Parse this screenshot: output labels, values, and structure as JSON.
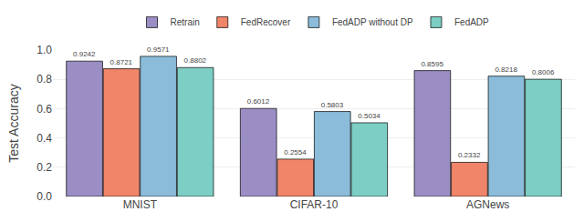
{
  "chart_data": {
    "type": "bar",
    "categories": [
      "MNIST",
      "CIFAR-10",
      "AGNews"
    ],
    "series": [
      {
        "name": "Retrain",
        "color": "#9b8ec4",
        "values": [
          0.9242,
          0.6012,
          0.8595
        ]
      },
      {
        "name": "FedRecover",
        "color": "#f0856a",
        "values": [
          0.8721,
          0.2554,
          0.2332
        ]
      },
      {
        "name": "FedADP without DP",
        "color": "#8bbcda",
        "values": [
          0.9571,
          0.5803,
          0.8218
        ]
      },
      {
        "name": "FedADP",
        "color": "#7dcec4",
        "values": [
          0.8802,
          0.5034,
          0.8006
        ]
      }
    ],
    "ylabel": "Test Accuracy",
    "ylim": [
      0.0,
      1.0
    ],
    "yticks": [
      {
        "value": 0.0,
        "label": "0.0"
      },
      0.2,
      0.4,
      0.6,
      0.8,
      {
        "value": 1.0,
        "label": "1.0"
      }
    ],
    "grid": true,
    "legend": "top",
    "data_labels": true
  }
}
